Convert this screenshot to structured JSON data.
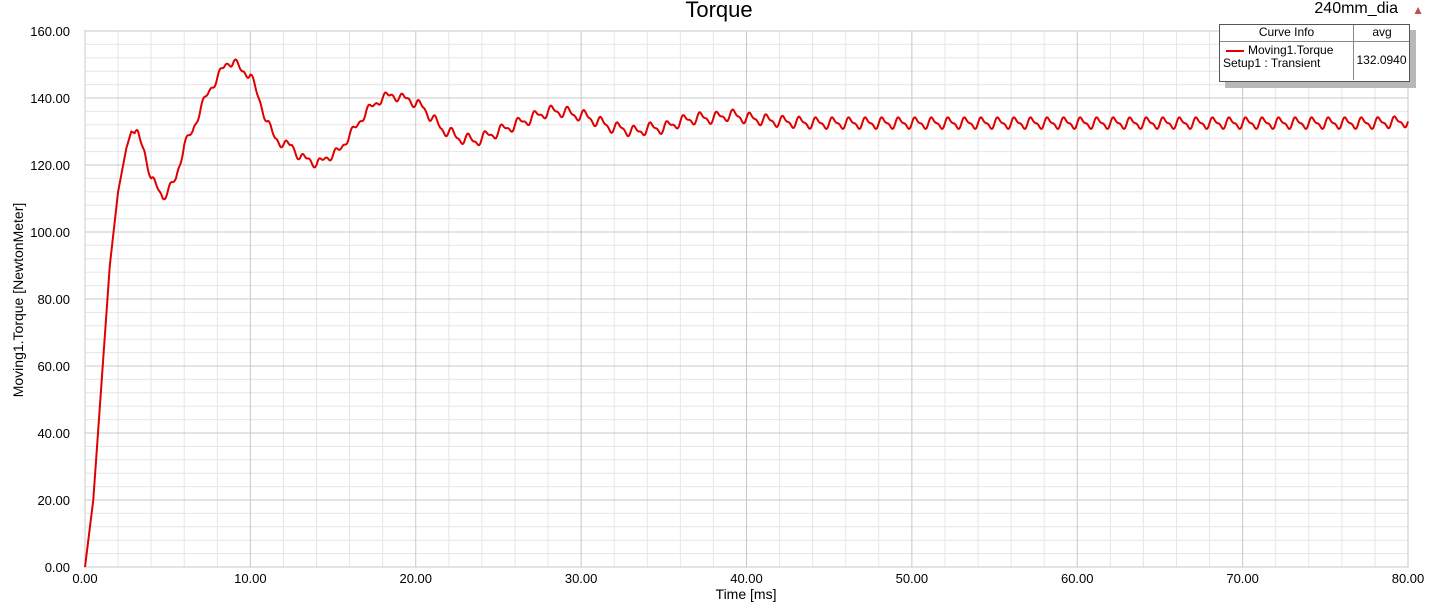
{
  "header": {
    "title": "Torque",
    "design_name": "240mm_dia"
  },
  "legend": {
    "col1": "Curve Info",
    "col2": "avg",
    "curve_name": "Moving1.Torque",
    "setup": "Setup1 : Transient",
    "avg_value": "132.0940"
  },
  "colors": {
    "curve": "#e00000",
    "major_grid": "#c8c8c8",
    "minor_grid": "#e6e6e6"
  },
  "chart_data": {
    "type": "line",
    "title": "Torque",
    "xlabel": "Time [ms]",
    "ylabel": "Moving1.Torque [NewtonMeter]",
    "xlim": [
      0,
      80
    ],
    "ylim": [
      0,
      160
    ],
    "x_ticks": [
      "0.00",
      "10.00",
      "20.00",
      "30.00",
      "40.00",
      "50.00",
      "60.00",
      "70.00",
      "80.00"
    ],
    "y_ticks": [
      "0.00",
      "20.00",
      "40.00",
      "60.00",
      "80.00",
      "100.00",
      "120.00",
      "140.00",
      "160.00"
    ],
    "grid": true,
    "legend_position": "top-right",
    "series": [
      {
        "name": "Moving1.Torque",
        "x": [
          0,
          0.5,
          1.0,
          1.5,
          2.0,
          2.5,
          2.8,
          3.2,
          3.6,
          4.0,
          4.4,
          4.7,
          5.0,
          5.5,
          6.0,
          6.5,
          7.0,
          7.5,
          8.0,
          8.5,
          9.0,
          9.5,
          10.0,
          10.5,
          11.0,
          11.5,
          12.0,
          12.5,
          13.0,
          13.5,
          14.0,
          14.5,
          15.0,
          15.5,
          16.0,
          16.5,
          17.0,
          17.5,
          18.0,
          18.5,
          19.0,
          19.5,
          20.0,
          20.5,
          21.0,
          21.5,
          22.0,
          22.5,
          23.0,
          23.5,
          24.0,
          24.5,
          25.0,
          25.5,
          26.0,
          26.5,
          27.0,
          27.5,
          28.0,
          28.5,
          29.0,
          29.5,
          30.0,
          30.5,
          31.0,
          31.5,
          32.0,
          32.5,
          33.0,
          33.5,
          34.0,
          34.5,
          35.0,
          35.5,
          36.0,
          37.0,
          38.0,
          39.0,
          40.0,
          42.0,
          44.0,
          46.0,
          48.0,
          50.0,
          52.0,
          54.0,
          56.0,
          58.0,
          60.0,
          62.0,
          64.0,
          66.0,
          68.0,
          70.0,
          72.0,
          74.0,
          76.0,
          78.0,
          80.0
        ],
        "y": [
          0,
          20,
          55,
          90,
          112,
          125,
          130,
          129,
          124,
          116,
          113,
          110.5,
          112,
          116,
          126,
          130,
          137,
          142,
          146,
          150,
          151,
          148,
          147,
          140,
          133,
          128,
          126,
          126,
          122,
          122,
          120,
          122,
          123,
          125,
          129,
          132,
          136,
          138,
          140,
          141,
          140,
          140,
          138,
          137,
          134,
          131,
          130,
          128,
          128,
          127,
          128,
          129,
          130,
          131,
          132,
          133,
          134,
          135,
          136,
          136,
          136,
          135,
          135,
          134,
          133,
          132,
          131,
          131,
          130,
          130,
          131,
          131,
          131,
          132,
          133,
          134,
          134,
          135,
          134,
          133,
          132.5,
          132.5,
          132.5,
          132.5,
          132.5,
          132.5,
          132.5,
          132.5,
          132.5,
          132.5,
          132.5,
          132.5,
          132.5,
          132.5,
          132.5,
          132.5,
          132.5,
          132.5,
          133
        ]
      }
    ]
  }
}
